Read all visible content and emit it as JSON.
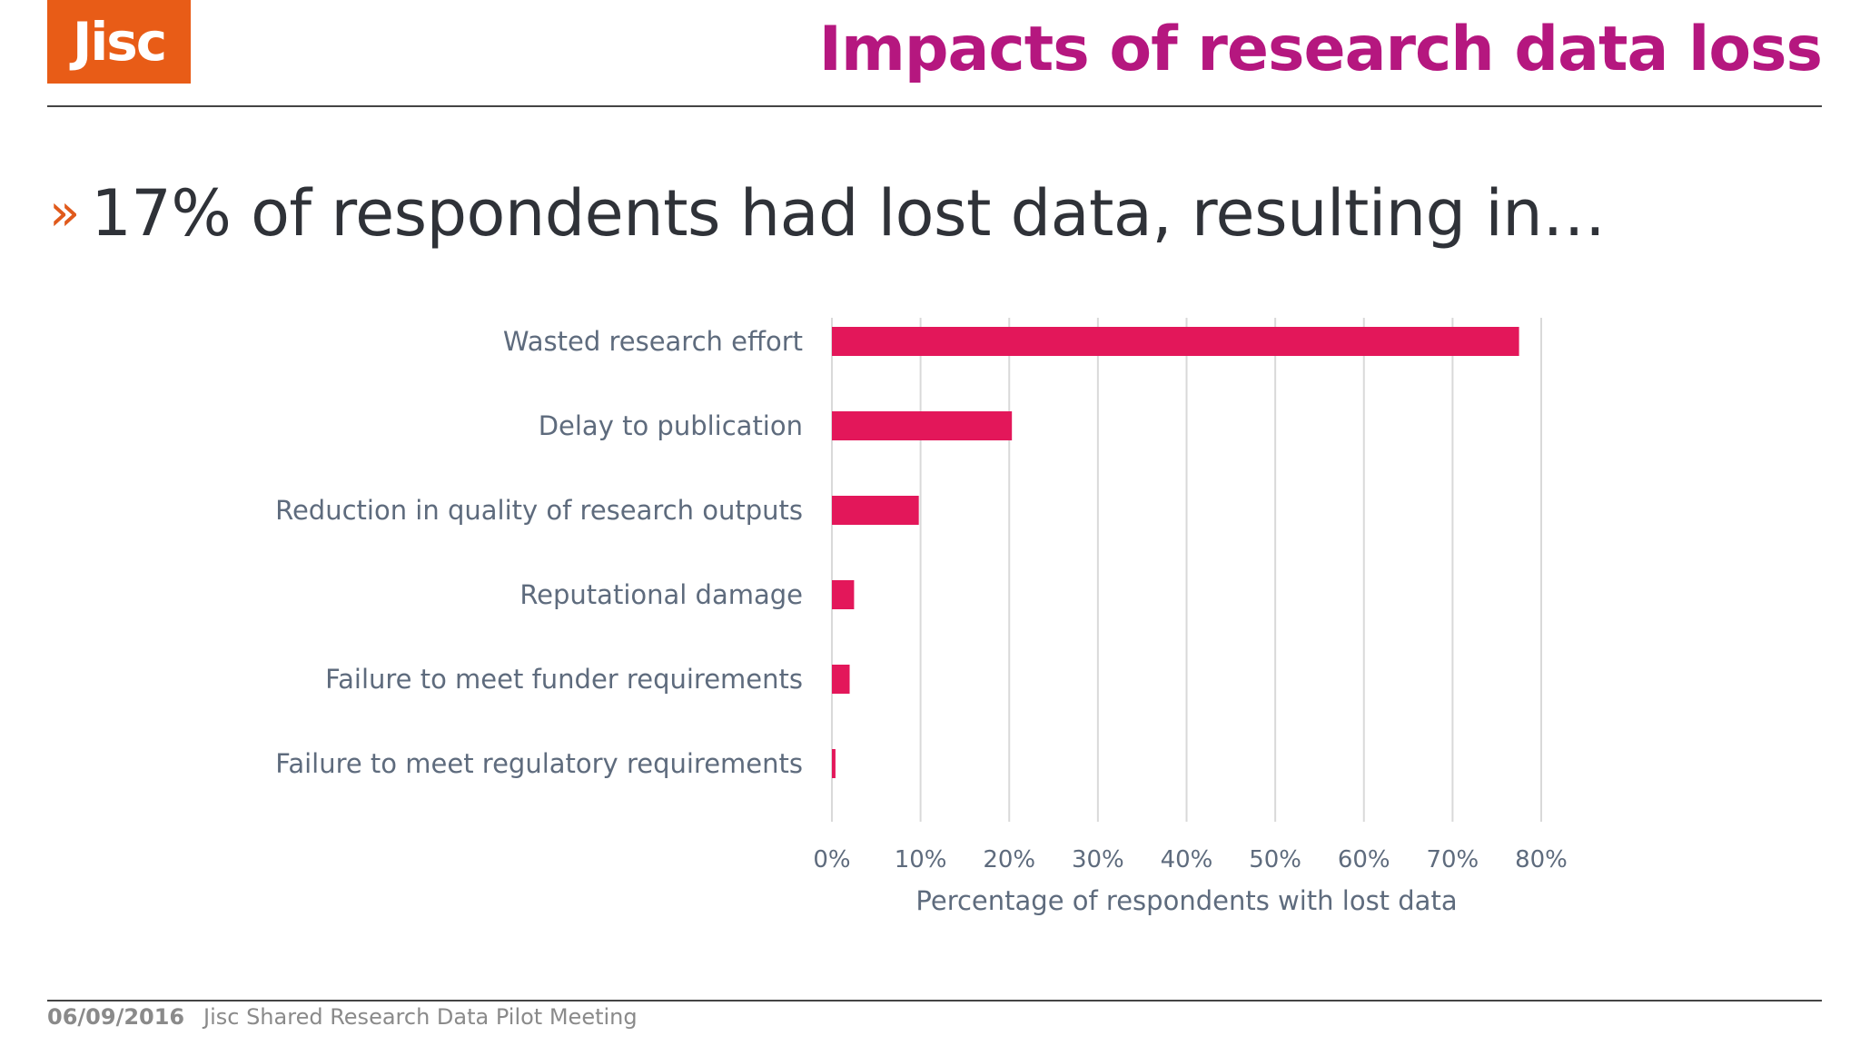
{
  "header": {
    "logo_text": "Jisc",
    "title": "Impacts of research data loss"
  },
  "headline": {
    "bullet": "»",
    "text": "17% of respondents had lost data, resulting in…"
  },
  "colors": {
    "accent_orange": "#e85c17",
    "title_magenta": "#b5177f",
    "bar": "#e3175a",
    "label_text": "#5e6b7d",
    "grid": "#d9d9d9"
  },
  "chart_data": {
    "type": "bar",
    "orientation": "horizontal",
    "categories": [
      "Wasted research effort",
      "Delay to publication",
      "Reduction in quality of research outputs",
      "Reputational damage",
      "Failure to meet funder requirements",
      "Failure to meet regulatory requirements"
    ],
    "values": [
      77.5,
      20.3,
      9.8,
      2.5,
      2.0,
      0.4
    ],
    "xlabel": "Percentage of respondents with lost data",
    "xlim": [
      0,
      80
    ],
    "xticks": [
      "0%",
      "10%",
      "20%",
      "30%",
      "40%",
      "50%",
      "60%",
      "70%",
      "80%"
    ],
    "grid": "vertical"
  },
  "footer": {
    "date": "06/09/2016",
    "meeting": "Jisc Shared Research Data Pilot Meeting"
  }
}
